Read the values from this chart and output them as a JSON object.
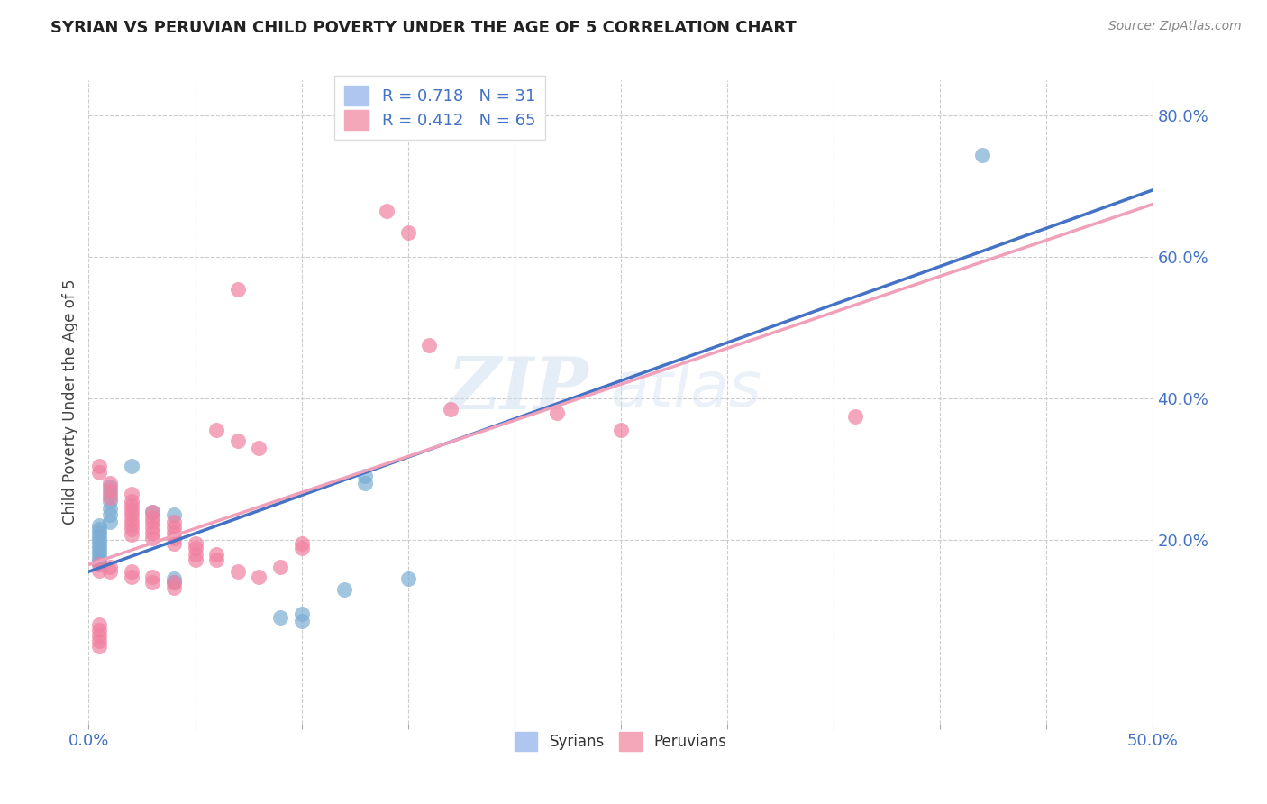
{
  "title": "SYRIAN VS PERUVIAN CHILD POVERTY UNDER THE AGE OF 5 CORRELATION CHART",
  "source": "Source: ZipAtlas.com",
  "ylabel": "Child Poverty Under the Age of 5",
  "xlim": [
    0.0,
    0.5
  ],
  "ylim": [
    -0.06,
    0.85
  ],
  "yticks": [
    0.2,
    0.4,
    0.6,
    0.8
  ],
  "xticks": [
    0.0,
    0.05,
    0.1,
    0.15,
    0.2,
    0.25,
    0.3,
    0.35,
    0.4,
    0.45,
    0.5
  ],
  "syrian_color": "#7badd4",
  "peruvian_color": "#f080a0",
  "syrian_line_color": "#4472c4",
  "peruvian_line_color": "#f0a0b8",
  "background_color": "#ffffff",
  "watermark": "ZIPatlas",
  "syrian_line": {
    "x0": 0.0,
    "y0": 0.155,
    "x1": 0.5,
    "y1": 0.695
  },
  "peruvian_line": {
    "x0": 0.0,
    "y0": 0.165,
    "x1": 0.5,
    "y1": 0.675
  },
  "syrian_scatter": [
    [
      0.42,
      0.745
    ],
    [
      0.02,
      0.305
    ],
    [
      0.01,
      0.275
    ],
    [
      0.01,
      0.265
    ],
    [
      0.01,
      0.255
    ],
    [
      0.01,
      0.245
    ],
    [
      0.01,
      0.235
    ],
    [
      0.01,
      0.225
    ],
    [
      0.005,
      0.22
    ],
    [
      0.005,
      0.215
    ],
    [
      0.005,
      0.21
    ],
    [
      0.005,
      0.205
    ],
    [
      0.005,
      0.2
    ],
    [
      0.005,
      0.195
    ],
    [
      0.005,
      0.19
    ],
    [
      0.005,
      0.185
    ],
    [
      0.005,
      0.18
    ],
    [
      0.005,
      0.175
    ],
    [
      0.005,
      0.17
    ],
    [
      0.005,
      0.165
    ],
    [
      0.13,
      0.29
    ],
    [
      0.13,
      0.28
    ],
    [
      0.03,
      0.24
    ],
    [
      0.04,
      0.235
    ],
    [
      0.04,
      0.145
    ],
    [
      0.04,
      0.14
    ],
    [
      0.09,
      0.09
    ],
    [
      0.1,
      0.085
    ],
    [
      0.1,
      0.095
    ],
    [
      0.12,
      0.13
    ],
    [
      0.15,
      0.145
    ]
  ],
  "peruvian_scatter": [
    [
      0.14,
      0.665
    ],
    [
      0.15,
      0.635
    ],
    [
      0.07,
      0.555
    ],
    [
      0.16,
      0.475
    ],
    [
      0.17,
      0.385
    ],
    [
      0.22,
      0.38
    ],
    [
      0.25,
      0.355
    ],
    [
      0.06,
      0.355
    ],
    [
      0.07,
      0.34
    ],
    [
      0.08,
      0.33
    ],
    [
      0.36,
      0.375
    ],
    [
      0.005,
      0.305
    ],
    [
      0.005,
      0.295
    ],
    [
      0.01,
      0.28
    ],
    [
      0.01,
      0.27
    ],
    [
      0.01,
      0.26
    ],
    [
      0.02,
      0.265
    ],
    [
      0.02,
      0.255
    ],
    [
      0.02,
      0.248
    ],
    [
      0.02,
      0.242
    ],
    [
      0.02,
      0.235
    ],
    [
      0.02,
      0.228
    ],
    [
      0.02,
      0.222
    ],
    [
      0.02,
      0.215
    ],
    [
      0.02,
      0.208
    ],
    [
      0.03,
      0.24
    ],
    [
      0.03,
      0.232
    ],
    [
      0.03,
      0.225
    ],
    [
      0.03,
      0.218
    ],
    [
      0.03,
      0.21
    ],
    [
      0.03,
      0.202
    ],
    [
      0.04,
      0.225
    ],
    [
      0.04,
      0.218
    ],
    [
      0.04,
      0.21
    ],
    [
      0.04,
      0.202
    ],
    [
      0.04,
      0.195
    ],
    [
      0.05,
      0.195
    ],
    [
      0.05,
      0.188
    ],
    [
      0.05,
      0.18
    ],
    [
      0.05,
      0.172
    ],
    [
      0.06,
      0.18
    ],
    [
      0.06,
      0.172
    ],
    [
      0.005,
      0.165
    ],
    [
      0.005,
      0.157
    ],
    [
      0.01,
      0.162
    ],
    [
      0.01,
      0.155
    ],
    [
      0.02,
      0.155
    ],
    [
      0.02,
      0.148
    ],
    [
      0.03,
      0.148
    ],
    [
      0.03,
      0.14
    ],
    [
      0.04,
      0.14
    ],
    [
      0.04,
      0.132
    ],
    [
      0.07,
      0.155
    ],
    [
      0.08,
      0.148
    ],
    [
      0.09,
      0.162
    ],
    [
      0.1,
      0.195
    ],
    [
      0.1,
      0.188
    ],
    [
      0.005,
      0.08
    ],
    [
      0.005,
      0.073
    ],
    [
      0.005,
      0.065
    ],
    [
      0.005,
      0.057
    ],
    [
      0.005,
      0.05
    ]
  ]
}
